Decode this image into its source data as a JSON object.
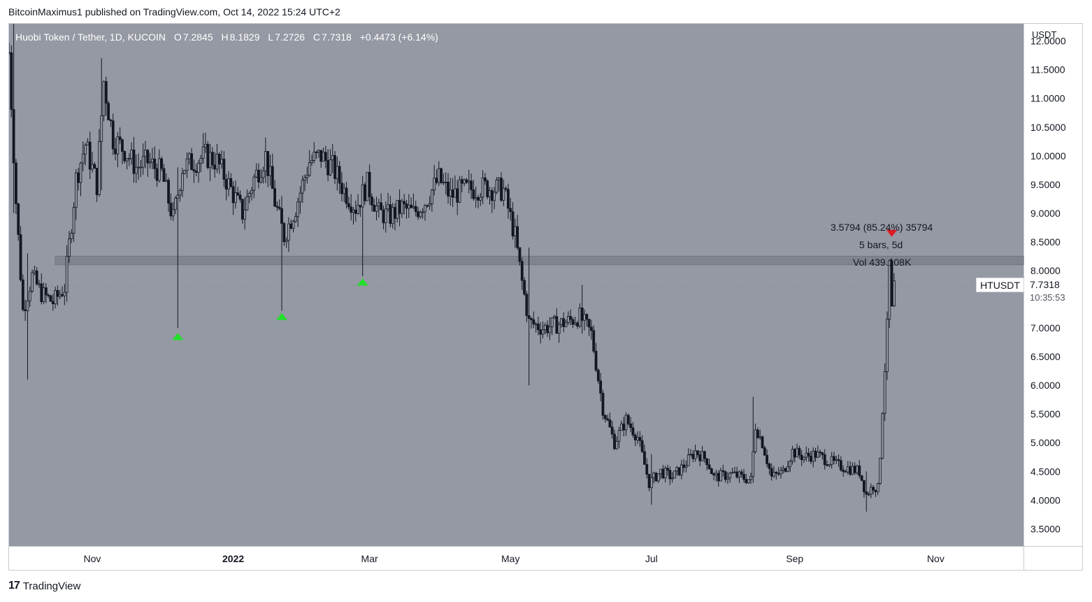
{
  "header": {
    "published_by": "BitcoinMaximus1 published on TradingView.com, Oct 14, 2022 15:24 UTC+2"
  },
  "legend": {
    "symbol": "Huobi Token / Tether, 1D, KUCOIN",
    "open_label": "O",
    "open": "7.2845",
    "high_label": "H",
    "high": "8.1829",
    "low_label": "L",
    "low": "7.2726",
    "close_label": "C",
    "close": "7.7318",
    "change": "+0.4473 (+6.14%)"
  },
  "price_axis": {
    "unit": "USDT"
  },
  "price_tag": {
    "symbol": "HTUSDT",
    "price": "7.7318",
    "countdown": "10:35:53"
  },
  "measure": {
    "line1": "3.5794 (85.24%) 35794",
    "line2": "5 bars, 5d",
    "line3": "Vol 439.108K"
  },
  "footer": {
    "brand": "TradingView",
    "logo_mark": "17"
  },
  "colors": {
    "plot_bg": "#9599a3",
    "candle": "#131722",
    "support_band": "#7d818a",
    "up_marker": "#22e02a",
    "down_marker": "#e01b24"
  },
  "chart_data": {
    "type": "candlestick",
    "title": "Huobi Token / Tether, 1D, KUCOIN",
    "ylabel": "USDT",
    "ylim": [
      3.2,
      12.3
    ],
    "y_ticks": [
      "12.0000",
      "11.5000",
      "11.0000",
      "10.5000",
      "10.0000",
      "9.5000",
      "9.0000",
      "8.5000",
      "8.0000",
      "7.5000",
      "7.0000",
      "6.5000",
      "6.0000",
      "5.5000",
      "5.0000",
      "4.5000",
      "4.0000",
      "3.5000"
    ],
    "x_ticks": [
      {
        "label": "Nov",
        "date": "2021-11-01"
      },
      {
        "label": "2022",
        "date": "2022-01-01"
      },
      {
        "label": "Mar",
        "date": "2022-03-01"
      },
      {
        "label": "May",
        "date": "2022-05-01"
      },
      {
        "label": "Jul",
        "date": "2022-07-01"
      },
      {
        "label": "Sep",
        "date": "2022-09-01"
      },
      {
        "label": "Nov",
        "date": "2022-11-01"
      }
    ],
    "x_range": [
      "2021-09-26",
      "2022-12-09"
    ],
    "price_path": [
      [
        "2021-09-26",
        11.8
      ],
      [
        "2021-09-29",
        9.2
      ],
      [
        "2021-10-02",
        7.3
      ],
      [
        "2021-10-06",
        7.9
      ],
      [
        "2021-10-10",
        7.6
      ],
      [
        "2021-10-15",
        7.45
      ],
      [
        "2021-10-20",
        7.7
      ],
      [
        "2021-10-25",
        9.6
      ],
      [
        "2021-10-29",
        10.2
      ],
      [
        "2021-11-03",
        9.5
      ],
      [
        "2021-11-06",
        11.3
      ],
      [
        "2021-11-10",
        10.3
      ],
      [
        "2021-11-15",
        10.1
      ],
      [
        "2021-11-20",
        9.8
      ],
      [
        "2021-11-25",
        9.9
      ],
      [
        "2021-12-01",
        9.7
      ],
      [
        "2021-12-06",
        8.9
      ],
      [
        "2021-12-10",
        9.8
      ],
      [
        "2021-12-15",
        9.9
      ],
      [
        "2021-12-20",
        10.0
      ],
      [
        "2021-12-25",
        9.9
      ],
      [
        "2021-12-30",
        9.5
      ],
      [
        "2022-01-05",
        9.0
      ],
      [
        "2022-01-10",
        9.6
      ],
      [
        "2022-01-15",
        10.0
      ],
      [
        "2022-01-19",
        9.2
      ],
      [
        "2022-01-23",
        8.6
      ],
      [
        "2022-01-28",
        9.1
      ],
      [
        "2022-02-03",
        9.9
      ],
      [
        "2022-02-08",
        10.0
      ],
      [
        "2022-02-13",
        9.8
      ],
      [
        "2022-02-18",
        9.4
      ],
      [
        "2022-02-23",
        9.1
      ],
      [
        "2022-02-28",
        9.5
      ],
      [
        "2022-03-05",
        9.0
      ],
      [
        "2022-03-10",
        8.95
      ],
      [
        "2022-03-15",
        9.1
      ],
      [
        "2022-03-20",
        9.0
      ],
      [
        "2022-03-25",
        9.2
      ],
      [
        "2022-03-31",
        9.6
      ],
      [
        "2022-04-05",
        9.3
      ],
      [
        "2022-04-10",
        9.4
      ],
      [
        "2022-04-20",
        9.45
      ],
      [
        "2022-04-28",
        9.4
      ],
      [
        "2022-05-03",
        8.6
      ],
      [
        "2022-05-06",
        7.8
      ],
      [
        "2022-05-09",
        7.1
      ],
      [
        "2022-05-15",
        7.0
      ],
      [
        "2022-05-25",
        7.1
      ],
      [
        "2022-05-31",
        7.2
      ],
      [
        "2022-06-05",
        6.9
      ],
      [
        "2022-06-10",
        5.6
      ],
      [
        "2022-06-15",
        5.0
      ],
      [
        "2022-06-20",
        5.4
      ],
      [
        "2022-06-25",
        5.1
      ],
      [
        "2022-06-30",
        4.3
      ],
      [
        "2022-07-05",
        4.5
      ],
      [
        "2022-07-10",
        4.4
      ],
      [
        "2022-07-15",
        4.6
      ],
      [
        "2022-07-20",
        4.85
      ],
      [
        "2022-07-25",
        4.7
      ],
      [
        "2022-07-28",
        4.4
      ],
      [
        "2022-08-05",
        4.45
      ],
      [
        "2022-08-13",
        4.35
      ],
      [
        "2022-08-15",
        5.3
      ],
      [
        "2022-08-18",
        5.0
      ],
      [
        "2022-08-22",
        4.4
      ],
      [
        "2022-08-27",
        4.5
      ],
      [
        "2022-08-31",
        4.85
      ],
      [
        "2022-09-05",
        4.75
      ],
      [
        "2022-09-10",
        4.8
      ],
      [
        "2022-09-15",
        4.7
      ],
      [
        "2022-09-20",
        4.6
      ],
      [
        "2022-09-25",
        4.55
      ],
      [
        "2022-09-29",
        4.5
      ],
      [
        "2022-10-02",
        4.1
      ],
      [
        "2022-10-05",
        4.25
      ],
      [
        "2022-10-07",
        4.2
      ],
      [
        "2022-10-08",
        4.8
      ],
      [
        "2022-10-09",
        5.6
      ],
      [
        "2022-10-11",
        7.0
      ],
      [
        "2022-10-12",
        8.1
      ],
      [
        "2022-10-13",
        7.28
      ],
      [
        "2022-10-14",
        7.73
      ]
    ],
    "wicks": [
      {
        "date": "2021-09-28",
        "high": 12.3,
        "low": 9.0
      },
      {
        "date": "2021-10-04",
        "high": 8.3,
        "low": 6.1
      },
      {
        "date": "2021-11-05",
        "high": 11.7,
        "low": 9.4
      },
      {
        "date": "2021-12-08",
        "high": 9.8,
        "low": 7.0
      },
      {
        "date": "2022-01-22",
        "high": 9.3,
        "low": 7.3
      },
      {
        "date": "2022-02-26",
        "high": 9.3,
        "low": 7.9
      },
      {
        "date": "2022-05-09",
        "high": 8.4,
        "low": 6.0
      },
      {
        "date": "2022-06-01",
        "high": 7.75,
        "low": 6.9
      },
      {
        "date": "2022-07-01",
        "high": 4.8,
        "low": 3.92
      },
      {
        "date": "2022-08-14",
        "high": 5.8,
        "low": 4.3
      },
      {
        "date": "2022-10-02",
        "high": 4.5,
        "low": 3.8
      },
      {
        "date": "2022-10-12",
        "high": 8.18,
        "low": 7.0
      }
    ],
    "support_zone": {
      "low": 8.1,
      "high": 8.25
    },
    "up_markers": [
      {
        "date": "2021-12-08",
        "price": 6.85
      },
      {
        "date": "2022-01-22",
        "price": 7.2
      },
      {
        "date": "2022-02-26",
        "price": 7.8
      }
    ],
    "down_markers": [
      {
        "date": "2022-10-13",
        "price": 8.65
      }
    ],
    "last_price": 7.7318
  }
}
